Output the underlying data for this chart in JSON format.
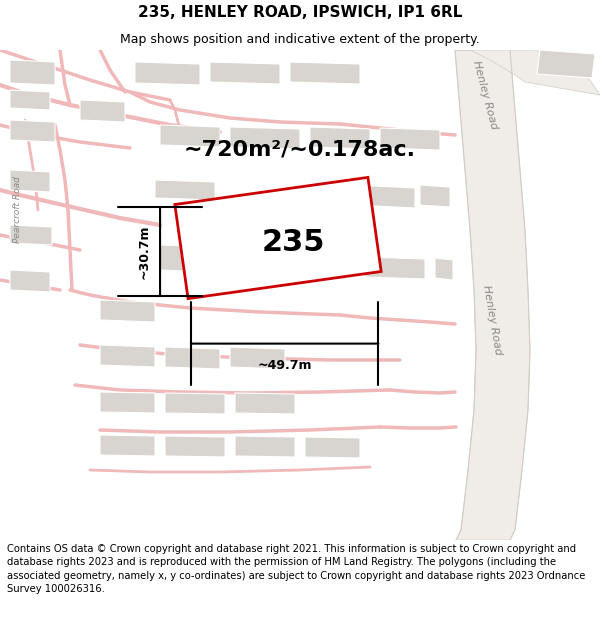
{
  "title": "235, HENLEY ROAD, IPSWICH, IP1 6RL",
  "subtitle": "Map shows position and indicative extent of the property.",
  "footer": "Contains OS data © Crown copyright and database right 2021. This information is subject to Crown copyright and database rights 2023 and is reproduced with the permission of HM Land Registry. The polygons (including the associated geometry, namely x, y co-ordinates) are subject to Crown copyright and database rights 2023 Ordnance Survey 100026316.",
  "area_label": "~720m²/~0.178ac.",
  "property_number": "235",
  "dim_width": "~49.7m",
  "dim_height": "~30.7m",
  "map_bg": "#f7f3f0",
  "road_pink": "#f0b8b8",
  "road_pink2": "#e8a8a8",
  "block_color": "#d8d4d0",
  "block_ec": "#ffffff",
  "henley_road_fill": "#f0ede8",
  "henley_road_edge": "#d0ccc8",
  "property_fill": "#ffffff",
  "property_outline": "#cc0000",
  "dim_color": "#1a1a1a",
  "title_fontsize": 11,
  "subtitle_fontsize": 9,
  "area_fontsize": 16,
  "prop_num_fontsize": 22,
  "dim_fontsize": 9,
  "footer_fontsize": 7.2,
  "road_label_color": "#888888",
  "road_label_fontsize": 8
}
